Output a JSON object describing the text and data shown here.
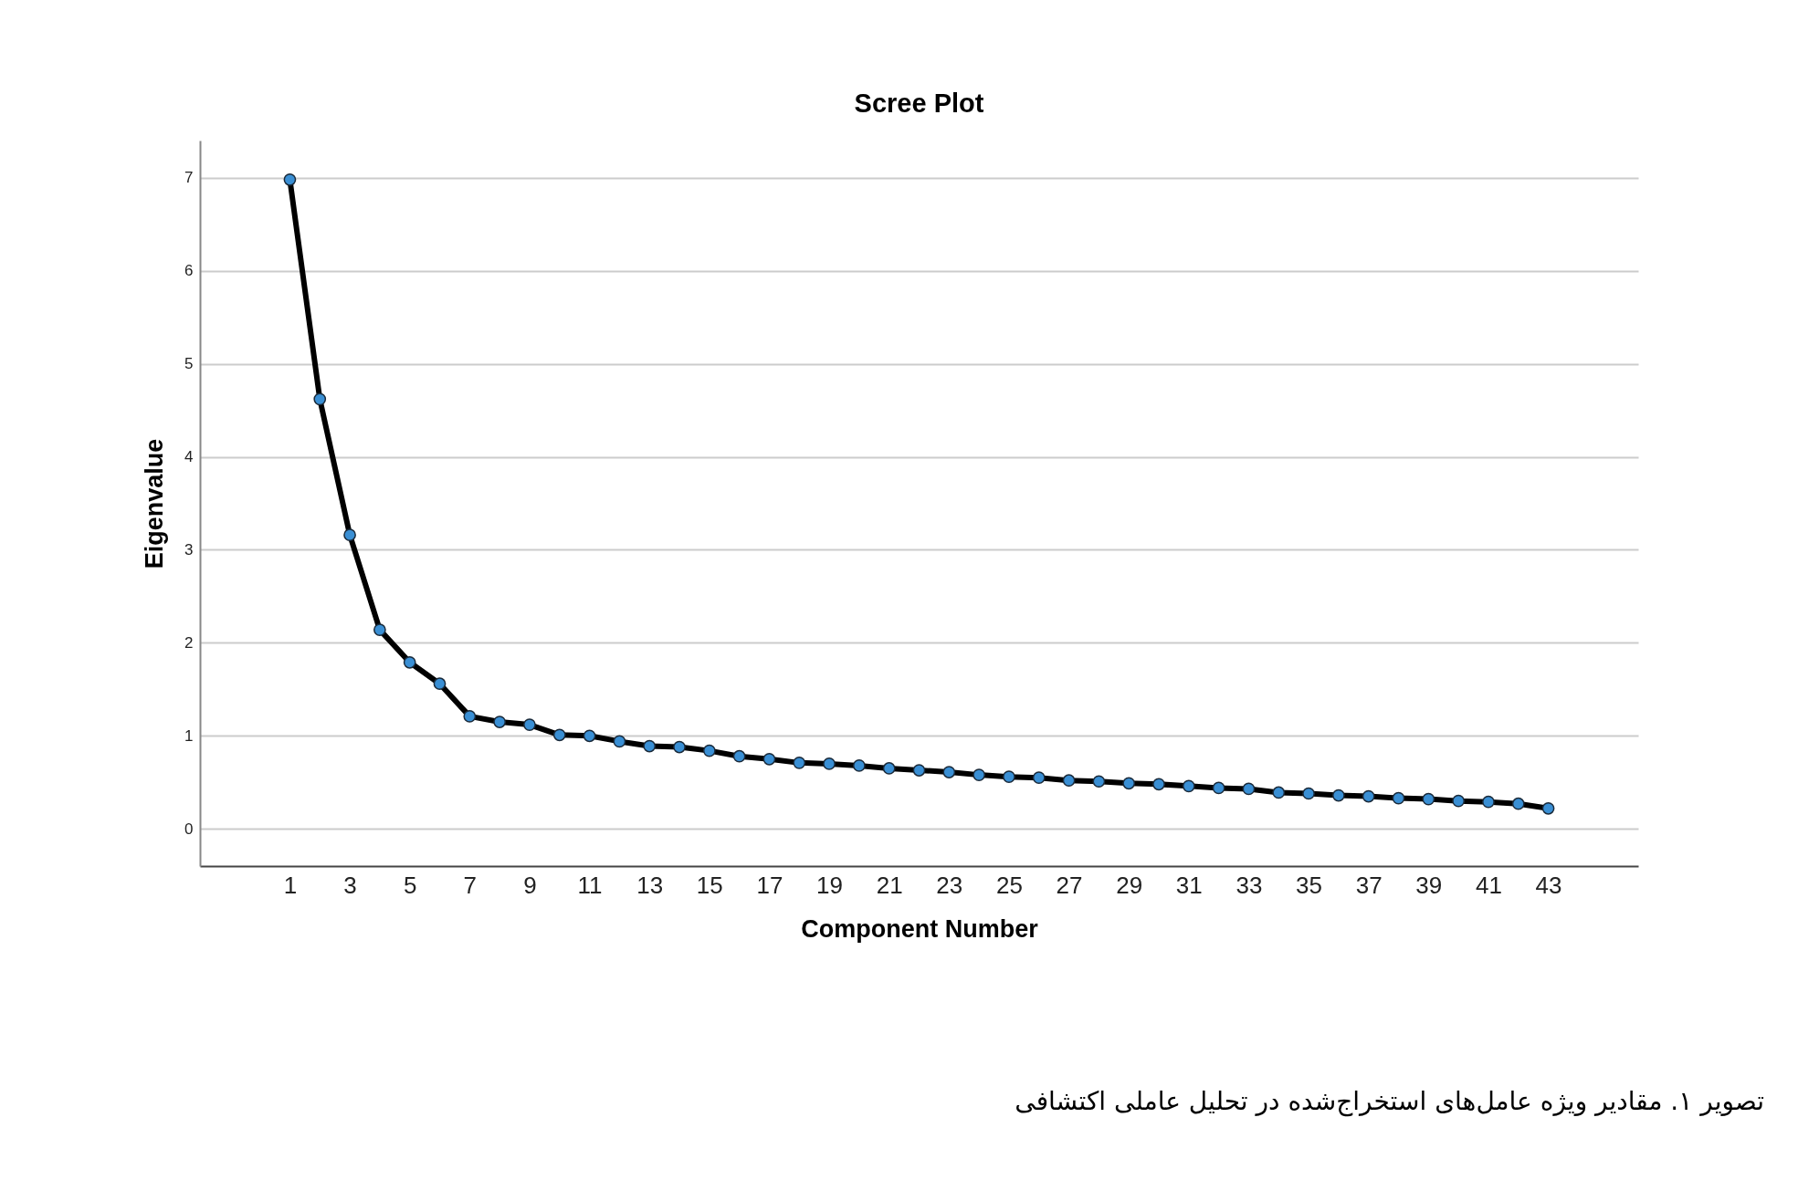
{
  "chart_data": {
    "type": "line",
    "title": "Scree Plot",
    "xlabel": "Component Number",
    "ylabel": "Eigenvalue",
    "x": [
      1,
      2,
      3,
      4,
      5,
      6,
      7,
      8,
      9,
      10,
      11,
      12,
      13,
      14,
      15,
      16,
      17,
      18,
      19,
      20,
      21,
      22,
      23,
      24,
      25,
      26,
      27,
      28,
      29,
      30,
      31,
      32,
      33,
      34,
      35,
      36,
      37,
      38,
      39,
      40,
      41,
      42,
      43
    ],
    "series": [
      {
        "color": "#3a8fd4",
        "values": [
          6.98,
          4.62,
          3.16,
          2.14,
          1.79,
          1.56,
          1.21,
          1.15,
          1.12,
          1.01,
          1.0,
          0.94,
          0.89,
          0.88,
          0.84,
          0.78,
          0.75,
          0.71,
          0.7,
          0.68,
          0.65,
          0.63,
          0.61,
          0.58,
          0.56,
          0.55,
          0.52,
          0.51,
          0.49,
          0.48,
          0.46,
          0.44,
          0.43,
          0.39,
          0.38,
          0.36,
          0.35,
          0.33,
          0.32,
          0.3,
          0.29,
          0.27,
          0.22
        ]
      }
    ],
    "xlim": [
      -2,
      46
    ],
    "xticks": [
      1,
      3,
      5,
      7,
      9,
      11,
      13,
      15,
      17,
      19,
      21,
      23,
      25,
      27,
      29,
      31,
      33,
      35,
      37,
      39,
      41,
      43
    ],
    "ylim": [
      -0.4,
      7.4
    ],
    "yticks": [
      0,
      1,
      2,
      3,
      4,
      5,
      6,
      7
    ],
    "grid": "y",
    "marker": "circle",
    "line_style": "solid",
    "legend": false,
    "annotations": [
      "تصویر ۱. مقادیر ویژه عامل‌های استخراج‌شده در تحلیل عاملی اکتشافی"
    ]
  }
}
